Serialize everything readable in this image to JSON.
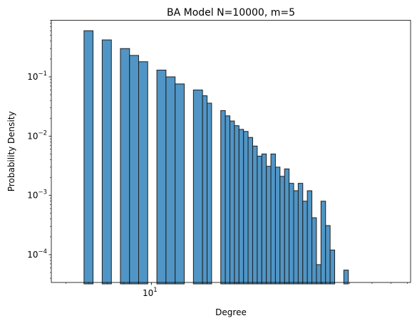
{
  "chart_data": {
    "type": "bar",
    "title": "BA Model N=10000, m=5",
    "xlabel": "Degree",
    "ylabel": "Probability Density",
    "xscale": "log",
    "yscale": "log",
    "xlim": [
      4.44,
      82
    ],
    "ylim": [
      3.4e-05,
      0.9
    ],
    "grid": false,
    "bar_color": "#5095c5",
    "edge_color": "#1f1f1f",
    "x_ticks": [
      {
        "value": 10,
        "base": "10",
        "exp": "1"
      }
    ],
    "y_ticks": [
      {
        "value": 0.0001,
        "base": "10",
        "exp": "−4"
      },
      {
        "value": 0.001,
        "base": "10",
        "exp": "−3"
      },
      {
        "value": 0.01,
        "base": "10",
        "exp": "−2"
      },
      {
        "value": 0.1,
        "base": "10",
        "exp": "−1"
      }
    ],
    "x_minor_ticks": [
      5,
      6,
      7,
      8,
      9,
      20,
      30,
      40,
      50,
      60,
      70,
      80
    ],
    "bins": [
      {
        "x0": 5.79,
        "x1": 6.23,
        "y": 0.6
      },
      {
        "x0": 6.71,
        "x1": 7.23,
        "y": 0.42
      },
      {
        "x0": 7.78,
        "x1": 8.38,
        "y": 0.3
      },
      {
        "x0": 8.38,
        "x1": 9.02,
        "y": 0.23
      },
      {
        "x0": 9.02,
        "x1": 9.71,
        "y": 0.18
      },
      {
        "x0": 10.46,
        "x1": 11.26,
        "y": 0.13
      },
      {
        "x0": 11.26,
        "x1": 12.13,
        "y": 0.1
      },
      {
        "x0": 12.13,
        "x1": 13.06,
        "y": 0.076
      },
      {
        "x0": 14.07,
        "x1": 15.15,
        "y": 0.06
      },
      {
        "x0": 15.15,
        "x1": 15.72,
        "y": 0.048
      },
      {
        "x0": 15.72,
        "x1": 16.31,
        "y": 0.036
      },
      {
        "x0": 17.57,
        "x1": 18.23,
        "y": 0.027
      },
      {
        "x0": 18.23,
        "x1": 18.92,
        "y": 0.022
      },
      {
        "x0": 18.92,
        "x1": 19.63,
        "y": 0.018
      },
      {
        "x0": 19.63,
        "x1": 20.37,
        "y": 0.015
      },
      {
        "x0": 20.37,
        "x1": 21.14,
        "y": 0.013
      },
      {
        "x0": 21.14,
        "x1": 21.93,
        "y": 0.012
      },
      {
        "x0": 21.93,
        "x1": 22.76,
        "y": 0.0095
      },
      {
        "x0": 22.76,
        "x1": 23.62,
        "y": 0.0068
      },
      {
        "x0": 23.62,
        "x1": 24.51,
        "y": 0.0046
      },
      {
        "x0": 24.51,
        "x1": 25.43,
        "y": 0.005
      },
      {
        "x0": 25.43,
        "x1": 26.39,
        "y": 0.0031
      },
      {
        "x0": 26.39,
        "x1": 27.38,
        "y": 0.005
      },
      {
        "x0": 27.38,
        "x1": 28.41,
        "y": 0.003
      },
      {
        "x0": 28.41,
        "x1": 29.48,
        "y": 0.0021
      },
      {
        "x0": 29.48,
        "x1": 30.59,
        "y": 0.0028
      },
      {
        "x0": 30.59,
        "x1": 31.75,
        "y": 0.0016
      },
      {
        "x0": 31.75,
        "x1": 32.94,
        "y": 0.0012
      },
      {
        "x0": 32.94,
        "x1": 34.18,
        "y": 0.0016
      },
      {
        "x0": 34.18,
        "x1": 35.47,
        "y": 0.0008
      },
      {
        "x0": 35.47,
        "x1": 36.81,
        "y": 0.0012
      },
      {
        "x0": 36.81,
        "x1": 38.19,
        "y": 0.00042
      },
      {
        "x0": 38.19,
        "x1": 39.63,
        "y": 6.8e-05
      },
      {
        "x0": 39.63,
        "x1": 41.13,
        "y": 0.0008
      },
      {
        "x0": 41.13,
        "x1": 42.68,
        "y": 0.00031
      },
      {
        "x0": 42.68,
        "x1": 44.29,
        "y": 0.00012
      },
      {
        "x0": 47.69,
        "x1": 49.49,
        "y": 5.5e-05
      }
    ]
  }
}
